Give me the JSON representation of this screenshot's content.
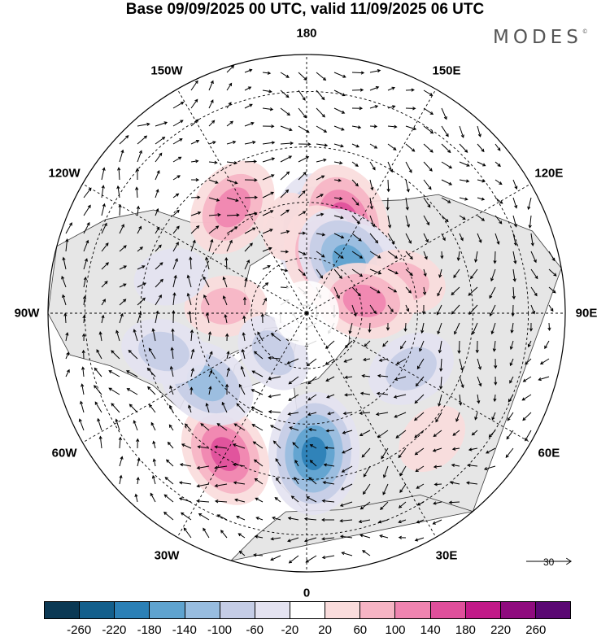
{
  "title": "Base 09/09/2025 00 UTC, valid 11/09/2025 06 UTC",
  "brand": {
    "name": "MODES",
    "mark": "©"
  },
  "longitude_labels": [
    {
      "id": "lon-180",
      "text": "180",
      "angle": 180
    },
    {
      "id": "lon-150e",
      "text": "150E",
      "angle": 150
    },
    {
      "id": "lon-120e",
      "text": "120E",
      "angle": 120
    },
    {
      "id": "lon-90e",
      "text": "90E",
      "angle": 90
    },
    {
      "id": "lon-60e",
      "text": "60E",
      "angle": 60
    },
    {
      "id": "lon-30e",
      "text": "30E",
      "angle": 30
    },
    {
      "id": "lon-0",
      "text": "0",
      "angle": 0
    },
    {
      "id": "lon-30w",
      "text": "30W",
      "angle": -30
    },
    {
      "id": "lon-60w",
      "text": "60W",
      "angle": -60
    },
    {
      "id": "lon-90w",
      "text": "90W",
      "angle": -90
    },
    {
      "id": "lon-120w",
      "text": "120W",
      "angle": -120
    },
    {
      "id": "lon-150w",
      "text": "150W",
      "angle": -150
    }
  ],
  "reference_vector": {
    "value": "30"
  },
  "colorbar": {
    "colors": [
      "#0b3954",
      "#135f8c",
      "#2b80b6",
      "#5fa3cf",
      "#98bde0",
      "#c5cde6",
      "#e4e3f1",
      "#ffffff",
      "#fadcdc",
      "#f6b4c4",
      "#f084b0",
      "#e04f9b",
      "#c21a88",
      "#8f0b7e",
      "#5a0773"
    ],
    "labels": [
      "-260",
      "-220",
      "-180",
      "-140",
      "-100",
      "-60",
      "-20",
      "20",
      "60",
      "100",
      "140",
      "180",
      "220",
      "260"
    ]
  },
  "anomaly_centers": [
    {
      "lat": 68,
      "lon": 172,
      "value": -170
    },
    {
      "lat": 66,
      "lon": -168,
      "value": 30
    },
    {
      "lat": 63,
      "lon": 158,
      "value": 160
    },
    {
      "lat": 55,
      "lon": -145,
      "value": 120
    },
    {
      "lat": 70,
      "lon": 130,
      "value": -120
    },
    {
      "lat": 74,
      "lon": 163,
      "value": 130
    },
    {
      "lat": 72,
      "lon": 140,
      "value": -170
    },
    {
      "lat": 62,
      "lon": 108,
      "value": 70
    },
    {
      "lat": 74,
      "lon": 102,
      "value": 120
    },
    {
      "lat": 58,
      "lon": 62,
      "value": -90
    },
    {
      "lat": 42,
      "lon": 45,
      "value": 50
    },
    {
      "lat": 52,
      "lon": 3,
      "value": -180
    },
    {
      "lat": 46,
      "lon": -30,
      "value": 140
    },
    {
      "lat": 57,
      "lon": -55,
      "value": -120
    },
    {
      "lat": 50,
      "lon": -75,
      "value": -80
    },
    {
      "lat": 68,
      "lon": -95,
      "value": 70
    },
    {
      "lat": 52,
      "lon": -105,
      "value": -50
    },
    {
      "lat": 76,
      "lon": -40,
      "value": -70
    }
  ]
}
